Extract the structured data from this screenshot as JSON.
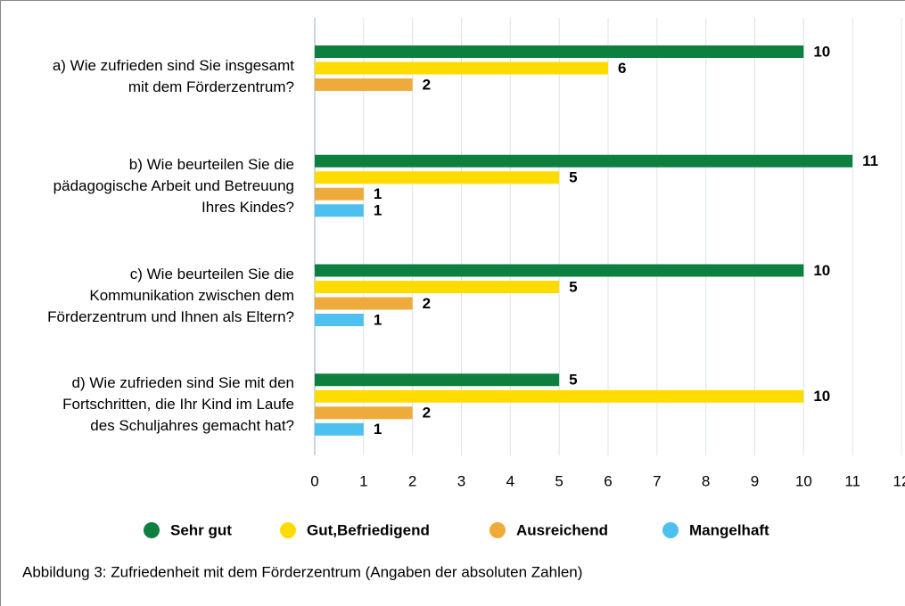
{
  "chart_data": {
    "type": "hbar",
    "categories": [
      "a) Wie zufrieden sind Sie insgesamt\nmit dem Förderzentrum?",
      "b) Wie beurteilen Sie die\npädagogische Arbeit und Betreuung\nIhres Kindes?",
      "c) Wie beurteilen Sie die\nKommunikation zwischen dem\nFörderzentrum und Ihnen als Eltern?",
      "d) Wie zufrieden sind Sie mit den\nFortschritten, die Ihr Kind im Laufe\ndes Schuljahres gemacht hat?"
    ],
    "series": [
      {
        "name": "Sehr gut",
        "color": "#0d8040",
        "values": [
          10,
          11,
          10,
          5
        ]
      },
      {
        "name": "Gut,Befriedigend",
        "color": "#ffdc00",
        "values": [
          6,
          5,
          5,
          10
        ]
      },
      {
        "name": "Ausreichend",
        "color": "#efaa3c",
        "values": [
          2,
          1,
          2,
          2
        ]
      },
      {
        "name": "Mangelhaft",
        "color": "#4ec0f0",
        "values": [
          null,
          1,
          1,
          1
        ]
      }
    ],
    "xlim": [
      0,
      12
    ],
    "xticks": [
      0,
      1,
      2,
      3,
      4,
      5,
      6,
      7,
      8,
      9,
      10,
      11,
      12
    ],
    "grid": true,
    "caption": "Abbildung 3: Zufriedenheit mit dem Förderzentrum (Angaben der absoluten Zahlen)"
  }
}
